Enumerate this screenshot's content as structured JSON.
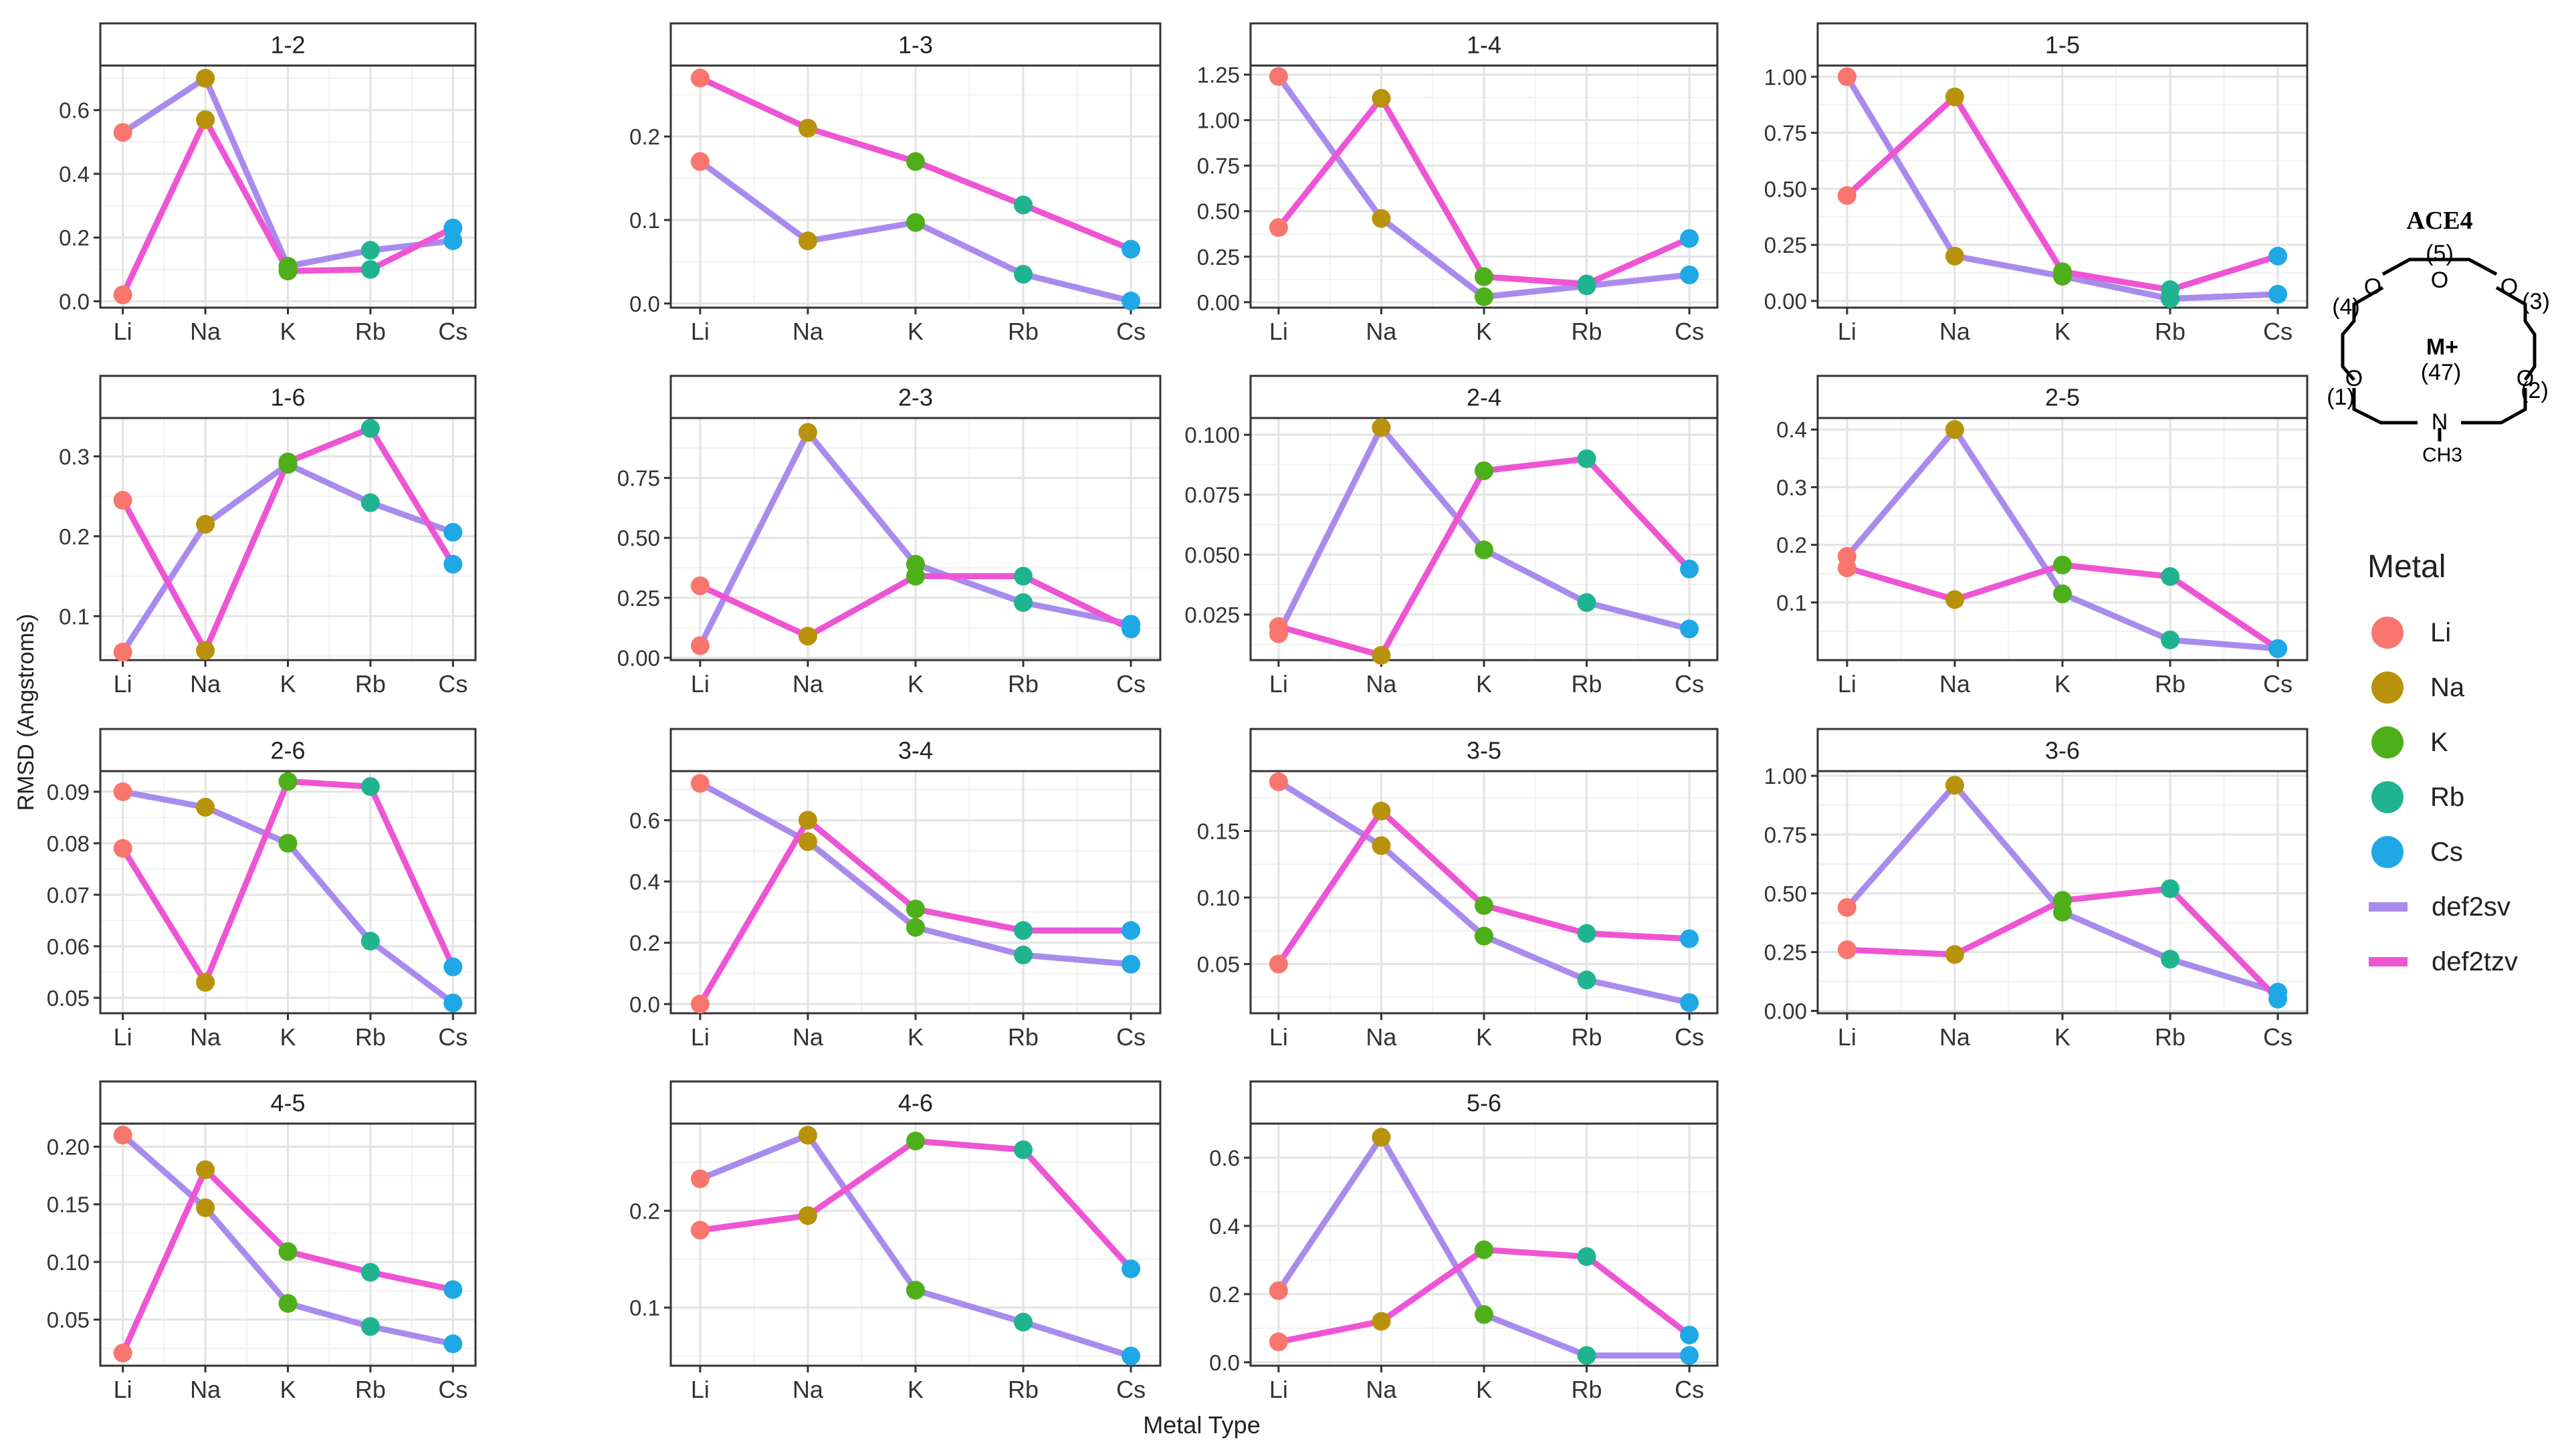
{
  "figure": {
    "y_axis_label": "RMSD (Angstroms)",
    "x_axis_label": "Metal Type"
  },
  "colors": {
    "Li": "#F8766D",
    "Na": "#B8920A",
    "K": "#4DAF19",
    "Rb": "#1FB48F",
    "Cs": "#1EA8E6",
    "def2sv": "#A98BEE",
    "def2tzv": "#EE55D4"
  },
  "legend": {
    "title": "Metal",
    "metal_items": [
      "Li",
      "Na",
      "K",
      "Rb",
      "Cs"
    ],
    "line_items": [
      "def2sv",
      "def2tzv"
    ]
  },
  "structure": {
    "name": "ACE4",
    "labels": [
      "(5)",
      "(4)",
      "(3)",
      "(1)",
      "(2)",
      "(47)"
    ],
    "ion": "M+",
    "atoms": [
      "O",
      "O",
      "O",
      "O",
      "O",
      "N",
      "CH3"
    ]
  },
  "chart_data": [
    {
      "type": "line",
      "title": "1-2",
      "categories": [
        "Li",
        "Na",
        "K",
        "Rb",
        "Cs"
      ],
      "series": [
        {
          "name": "def2sv",
          "values": [
            0.53,
            0.7,
            0.11,
            0.16,
            0.19
          ]
        },
        {
          "name": "def2tzv",
          "values": [
            0.02,
            0.57,
            0.095,
            0.1,
            0.23
          ]
        }
      ],
      "ylim": [
        -0.02,
        0.74
      ],
      "yticks": [
        0.0,
        0.2,
        0.4,
        0.6
      ],
      "tick_labels": [
        "0.0",
        "0.2",
        "0.4",
        "0.6"
      ]
    },
    {
      "type": "line",
      "title": "1-3",
      "categories": [
        "Li",
        "Na",
        "K",
        "Rb",
        "Cs"
      ],
      "series": [
        {
          "name": "def2sv",
          "values": [
            0.17,
            0.075,
            0.097,
            0.035,
            0.003
          ]
        },
        {
          "name": "def2tzv",
          "values": [
            0.27,
            0.21,
            0.17,
            0.118,
            0.065
          ]
        }
      ],
      "ylim": [
        -0.005,
        0.285
      ],
      "yticks": [
        0.0,
        0.1,
        0.2
      ],
      "tick_labels": [
        "0.0",
        "0.1",
        "0.2"
      ]
    },
    {
      "type": "line",
      "title": "1-4",
      "categories": [
        "Li",
        "Na",
        "K",
        "Rb",
        "Cs"
      ],
      "series": [
        {
          "name": "def2sv",
          "values": [
            1.24,
            0.46,
            0.03,
            0.09,
            0.15
          ]
        },
        {
          "name": "def2tzv",
          "values": [
            0.41,
            1.12,
            0.14,
            0.1,
            0.35
          ]
        }
      ],
      "ylim": [
        -0.03,
        1.3
      ],
      "yticks": [
        0.0,
        0.25,
        0.5,
        0.75,
        1.0,
        1.25
      ],
      "tick_labels": [
        "0.00",
        "0.25",
        "0.50",
        "0.75",
        "1.00",
        "1.25"
      ]
    },
    {
      "type": "line",
      "title": "1-5",
      "categories": [
        "Li",
        "Na",
        "K",
        "Rb",
        "Cs"
      ],
      "series": [
        {
          "name": "def2sv",
          "values": [
            1.0,
            0.2,
            0.11,
            0.01,
            0.03
          ]
        },
        {
          "name": "def2tzv",
          "values": [
            0.47,
            0.91,
            0.13,
            0.05,
            0.2
          ]
        }
      ],
      "ylim": [
        -0.03,
        1.05
      ],
      "yticks": [
        0.0,
        0.25,
        0.5,
        0.75,
        1.0
      ],
      "tick_labels": [
        "0.00",
        "0.25",
        "0.50",
        "0.75",
        "1.00"
      ]
    },
    {
      "type": "line",
      "title": "1-6",
      "categories": [
        "Li",
        "Na",
        "K",
        "Rb",
        "Cs"
      ],
      "series": [
        {
          "name": "def2sv",
          "values": [
            0.055,
            0.215,
            0.29,
            0.242,
            0.205
          ]
        },
        {
          "name": "def2tzv",
          "values": [
            0.245,
            0.057,
            0.293,
            0.335,
            0.165
          ]
        }
      ],
      "ylim": [
        0.045,
        0.348
      ],
      "yticks": [
        0.1,
        0.2,
        0.3
      ],
      "tick_labels": [
        "0.1",
        "0.2",
        "0.3"
      ]
    },
    {
      "type": "line",
      "title": "2-3",
      "categories": [
        "Li",
        "Na",
        "K",
        "Rb",
        "Cs"
      ],
      "series": [
        {
          "name": "def2sv",
          "values": [
            0.05,
            0.94,
            0.39,
            0.23,
            0.14
          ]
        },
        {
          "name": "def2tzv",
          "values": [
            0.3,
            0.09,
            0.34,
            0.34,
            0.12
          ]
        }
      ],
      "ylim": [
        -0.01,
        1.0
      ],
      "yticks": [
        0.0,
        0.25,
        0.5,
        0.75
      ],
      "tick_labels": [
        "0.00",
        "0.25",
        "0.50",
        "0.75"
      ]
    },
    {
      "type": "line",
      "title": "2-4",
      "categories": [
        "Li",
        "Na",
        "K",
        "Rb",
        "Cs"
      ],
      "series": [
        {
          "name": "def2sv",
          "values": [
            0.017,
            0.103,
            0.052,
            0.03,
            0.019
          ]
        },
        {
          "name": "def2tzv",
          "values": [
            0.02,
            0.008,
            0.085,
            0.09,
            0.044
          ]
        }
      ],
      "ylim": [
        0.006,
        0.107
      ],
      "yticks": [
        0.025,
        0.05,
        0.075,
        0.1
      ],
      "tick_labels": [
        "0.025",
        "0.050",
        "0.075",
        "0.100"
      ]
    },
    {
      "type": "line",
      "title": "2-5",
      "categories": [
        "Li",
        "Na",
        "K",
        "Rb",
        "Cs"
      ],
      "series": [
        {
          "name": "def2sv",
          "values": [
            0.18,
            0.4,
            0.115,
            0.035,
            0.02
          ]
        },
        {
          "name": "def2tzv",
          "values": [
            0.16,
            0.105,
            0.165,
            0.145,
            0.02
          ]
        }
      ],
      "ylim": [
        0.0,
        0.42
      ],
      "yticks": [
        0.1,
        0.2,
        0.3,
        0.4
      ],
      "tick_labels": [
        "0.1",
        "0.2",
        "0.3",
        "0.4"
      ]
    },
    {
      "type": "line",
      "title": "2-6",
      "categories": [
        "Li",
        "Na",
        "K",
        "Rb",
        "Cs"
      ],
      "series": [
        {
          "name": "def2sv",
          "values": [
            0.09,
            0.087,
            0.08,
            0.061,
            0.049
          ]
        },
        {
          "name": "def2tzv",
          "values": [
            0.079,
            0.053,
            0.092,
            0.091,
            0.056
          ]
        }
      ],
      "ylim": [
        0.047,
        0.094
      ],
      "yticks": [
        0.05,
        0.06,
        0.07,
        0.08,
        0.09
      ],
      "tick_labels": [
        "0.05",
        "0.06",
        "0.07",
        "0.08",
        "0.09"
      ]
    },
    {
      "type": "line",
      "title": "3-4",
      "categories": [
        "Li",
        "Na",
        "K",
        "Rb",
        "Cs"
      ],
      "series": [
        {
          "name": "def2sv",
          "values": [
            0.72,
            0.53,
            0.25,
            0.16,
            0.13
          ]
        },
        {
          "name": "def2tzv",
          "values": [
            0.0,
            0.6,
            0.31,
            0.24,
            0.24
          ]
        }
      ],
      "ylim": [
        -0.03,
        0.76
      ],
      "yticks": [
        0.0,
        0.2,
        0.4,
        0.6
      ],
      "tick_labels": [
        "0.0",
        "0.2",
        "0.4",
        "0.6"
      ]
    },
    {
      "type": "line",
      "title": "3-5",
      "categories": [
        "Li",
        "Na",
        "K",
        "Rb",
        "Cs"
      ],
      "series": [
        {
          "name": "def2sv",
          "values": [
            0.187,
            0.139,
            0.071,
            0.038,
            0.021
          ]
        },
        {
          "name": "def2tzv",
          "values": [
            0.05,
            0.165,
            0.094,
            0.073,
            0.069
          ]
        }
      ],
      "ylim": [
        0.013,
        0.195
      ],
      "yticks": [
        0.05,
        0.1,
        0.15
      ],
      "tick_labels": [
        "0.05",
        "0.10",
        "0.15"
      ]
    },
    {
      "type": "line",
      "title": "3-6",
      "categories": [
        "Li",
        "Na",
        "K",
        "Rb",
        "Cs"
      ],
      "series": [
        {
          "name": "def2sv",
          "values": [
            0.44,
            0.96,
            0.42,
            0.22,
            0.08
          ]
        },
        {
          "name": "def2tzv",
          "values": [
            0.26,
            0.24,
            0.47,
            0.52,
            0.05
          ]
        }
      ],
      "ylim": [
        -0.01,
        1.02
      ],
      "yticks": [
        0.0,
        0.25,
        0.5,
        0.75,
        1.0
      ],
      "tick_labels": [
        "0.00",
        "0.25",
        "0.50",
        "0.75",
        "1.00"
      ]
    },
    {
      "type": "line",
      "title": "4-5",
      "categories": [
        "Li",
        "Na",
        "K",
        "Rb",
        "Cs"
      ],
      "series": [
        {
          "name": "def2sv",
          "values": [
            0.21,
            0.147,
            0.064,
            0.044,
            0.029
          ]
        },
        {
          "name": "def2tzv",
          "values": [
            0.021,
            0.18,
            0.109,
            0.091,
            0.076
          ]
        }
      ],
      "ylim": [
        0.01,
        0.22
      ],
      "yticks": [
        0.05,
        0.1,
        0.15,
        0.2
      ],
      "tick_labels": [
        "0.05",
        "0.10",
        "0.15",
        "0.20"
      ]
    },
    {
      "type": "line",
      "title": "4-6",
      "categories": [
        "Li",
        "Na",
        "K",
        "Rb",
        "Cs"
      ],
      "series": [
        {
          "name": "def2sv",
          "values": [
            0.233,
            0.278,
            0.118,
            0.085,
            0.05
          ]
        },
        {
          "name": "def2tzv",
          "values": [
            0.18,
            0.195,
            0.272,
            0.263,
            0.14
          ]
        }
      ],
      "ylim": [
        0.04,
        0.29
      ],
      "yticks": [
        0.1,
        0.2
      ],
      "tick_labels": [
        "0.1",
        "0.2"
      ]
    },
    {
      "type": "line",
      "title": "5-6",
      "categories": [
        "Li",
        "Na",
        "K",
        "Rb",
        "Cs"
      ],
      "series": [
        {
          "name": "def2sv",
          "values": [
            0.21,
            0.66,
            0.14,
            0.02,
            0.02
          ]
        },
        {
          "name": "def2tzv",
          "values": [
            0.06,
            0.12,
            0.33,
            0.31,
            0.08
          ]
        }
      ],
      "ylim": [
        -0.01,
        0.7
      ],
      "yticks": [
        0.0,
        0.2,
        0.4,
        0.6
      ],
      "tick_labels": [
        "0.0",
        "0.2",
        "0.4",
        "0.6"
      ]
    }
  ]
}
